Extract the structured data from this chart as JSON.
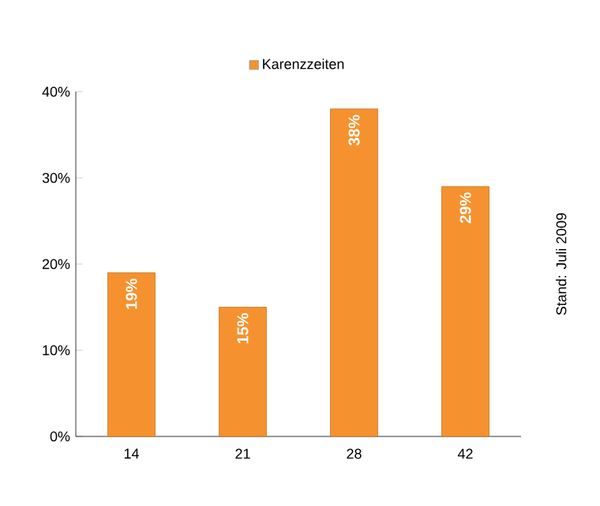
{
  "chart_data": {
    "type": "bar",
    "categories": [
      "14",
      "21",
      "28",
      "42"
    ],
    "series": [
      {
        "name": "Karenzzeiten",
        "color": "#f5922f",
        "values": [
          19,
          15,
          38,
          29
        ],
        "value_labels": [
          "19%",
          "15%",
          "38%",
          "29%"
        ]
      }
    ],
    "ylim": [
      0,
      40
    ],
    "yticks": [
      {
        "value": 0,
        "label": "0%"
      },
      {
        "value": 10,
        "label": "10%"
      },
      {
        "value": 20,
        "label": "20%"
      },
      {
        "value": 30,
        "label": "30%"
      },
      {
        "value": 40,
        "label": "40%"
      }
    ],
    "legend": "top",
    "annotations": [
      "Stand: Juli 2009"
    ]
  }
}
